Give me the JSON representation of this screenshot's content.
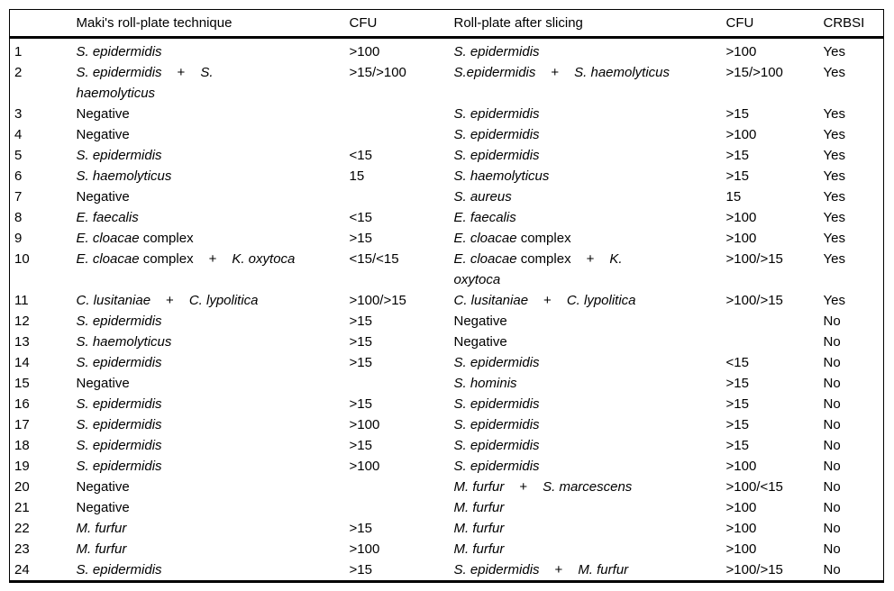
{
  "colors": {
    "text": "#000000",
    "background": "#ffffff",
    "rule": "#000000"
  },
  "table": {
    "headers": {
      "index": "",
      "maki": "Maki's roll-plate technique",
      "cfu1": "CFU",
      "slice": "Roll-plate after slicing",
      "cfu2": "CFU",
      "crbsi": "CRBSI"
    },
    "rows": [
      {
        "n": "1",
        "maki": [
          {
            "t": "S. epidermidis",
            "s": "i"
          }
        ],
        "cfu1": ">100",
        "slice": [
          {
            "t": "S. epidermidis",
            "s": "i"
          }
        ],
        "cfu2": ">100",
        "crbsi": "Yes"
      },
      {
        "n": "2",
        "maki": [
          {
            "t": "S. epidermidis",
            "s": "i"
          },
          {
            "t": "+",
            "s": "p"
          },
          {
            "t": "S.",
            "s": "i"
          },
          {
            "br": true
          },
          {
            "t": "haemolyticus",
            "s": "i"
          }
        ],
        "cfu1": ">15/>100",
        "slice": [
          {
            "t": "S.epidermidis",
            "s": "i"
          },
          {
            "t": "+",
            "s": "p"
          },
          {
            "t": "S. haemolyticus",
            "s": "i"
          }
        ],
        "cfu2": ">15/>100",
        "crbsi": "Yes"
      },
      {
        "n": "3",
        "maki": [
          {
            "t": "Negative",
            "s": "r"
          }
        ],
        "cfu1": "",
        "slice": [
          {
            "t": "S. epidermidis",
            "s": "i"
          }
        ],
        "cfu2": ">15",
        "crbsi": "Yes"
      },
      {
        "n": "4",
        "maki": [
          {
            "t": "Negative",
            "s": "r"
          }
        ],
        "cfu1": "",
        "slice": [
          {
            "t": "S. epidermidis",
            "s": "i"
          }
        ],
        "cfu2": ">100",
        "crbsi": "Yes"
      },
      {
        "n": "5",
        "maki": [
          {
            "t": "S. epidermidis",
            "s": "i"
          }
        ],
        "cfu1": "<15",
        "slice": [
          {
            "t": "S. epidermidis",
            "s": "i"
          }
        ],
        "cfu2": ">15",
        "crbsi": "Yes"
      },
      {
        "n": "6",
        "maki": [
          {
            "t": "S. haemolyticus",
            "s": "i"
          }
        ],
        "cfu1": "15",
        "slice": [
          {
            "t": "S. haemolyticus",
            "s": "i"
          }
        ],
        "cfu2": ">15",
        "crbsi": "Yes"
      },
      {
        "n": "7",
        "maki": [
          {
            "t": "Negative",
            "s": "r"
          }
        ],
        "cfu1": "",
        "slice": [
          {
            "t": "S. aureus",
            "s": "i"
          }
        ],
        "cfu2": "15",
        "crbsi": "Yes"
      },
      {
        "n": "8",
        "maki": [
          {
            "t": "E. faecalis",
            "s": "i"
          }
        ],
        "cfu1": "<15",
        "slice": [
          {
            "t": "E. faecalis",
            "s": "i"
          }
        ],
        "cfu2": ">100",
        "crbsi": "Yes"
      },
      {
        "n": "9",
        "maki": [
          {
            "t": "E. cloacae",
            "s": "i"
          },
          {
            "t": " complex",
            "s": "r"
          }
        ],
        "cfu1": ">15",
        "slice": [
          {
            "t": "E. cloacae",
            "s": "i"
          },
          {
            "t": " complex",
            "s": "r"
          }
        ],
        "cfu2": ">100",
        "crbsi": "Yes"
      },
      {
        "n": "10",
        "maki": [
          {
            "t": "E. cloacae",
            "s": "i"
          },
          {
            "t": " complex",
            "s": "r"
          },
          {
            "t": "+",
            "s": "p"
          },
          {
            "t": "K. oxytoca",
            "s": "i"
          }
        ],
        "cfu1": "<15/<15",
        "slice": [
          {
            "t": "E. cloacae",
            "s": "i"
          },
          {
            "t": " complex",
            "s": "r"
          },
          {
            "t": "+",
            "s": "p"
          },
          {
            "t": "K.",
            "s": "i"
          },
          {
            "br": true
          },
          {
            "t": "oxytoca",
            "s": "i"
          }
        ],
        "cfu2": ">100/>15",
        "crbsi": "Yes"
      },
      {
        "n": "11",
        "maki": [
          {
            "t": "C. lusitaniae",
            "s": "i"
          },
          {
            "t": "+",
            "s": "p"
          },
          {
            "t": "C. lypolitica",
            "s": "i"
          }
        ],
        "cfu1": ">100/>15",
        "slice": [
          {
            "t": "C. lusitaniae",
            "s": "i"
          },
          {
            "t": "+",
            "s": "p"
          },
          {
            "t": "C. lypolitica",
            "s": "i"
          }
        ],
        "cfu2": ">100/>15",
        "crbsi": "Yes"
      },
      {
        "n": "12",
        "maki": [
          {
            "t": "S. epidermidis",
            "s": "i"
          }
        ],
        "cfu1": ">15",
        "slice": [
          {
            "t": "Negative",
            "s": "r"
          }
        ],
        "cfu2": "",
        "crbsi": "No"
      },
      {
        "n": "13",
        "maki": [
          {
            "t": "S. haemolyticus",
            "s": "i"
          }
        ],
        "cfu1": ">15",
        "slice": [
          {
            "t": "Negative",
            "s": "r"
          }
        ],
        "cfu2": "",
        "crbsi": "No"
      },
      {
        "n": "14",
        "maki": [
          {
            "t": "S. epidermidis",
            "s": "i"
          }
        ],
        "cfu1": ">15",
        "slice": [
          {
            "t": "S. epidermidis",
            "s": "i"
          }
        ],
        "cfu2": "<15",
        "crbsi": "No"
      },
      {
        "n": "15",
        "maki": [
          {
            "t": "Negative",
            "s": "r"
          }
        ],
        "cfu1": "",
        "slice": [
          {
            "t": "S. hominis",
            "s": "i"
          }
        ],
        "cfu2": ">15",
        "crbsi": "No"
      },
      {
        "n": "16",
        "maki": [
          {
            "t": "S. epidermidis",
            "s": "i"
          }
        ],
        "cfu1": ">15",
        "slice": [
          {
            "t": "S. epidermidis",
            "s": "i"
          }
        ],
        "cfu2": ">15",
        "crbsi": "No"
      },
      {
        "n": "17",
        "maki": [
          {
            "t": "S. epidermidis",
            "s": "i"
          }
        ],
        "cfu1": ">100",
        "slice": [
          {
            "t": "S. epidermidis",
            "s": "i"
          }
        ],
        "cfu2": ">15",
        "crbsi": "No"
      },
      {
        "n": "18",
        "maki": [
          {
            "t": "S. epidermidis",
            "s": "i"
          }
        ],
        "cfu1": ">15",
        "slice": [
          {
            "t": "S. epidermidis",
            "s": "i"
          }
        ],
        "cfu2": ">15",
        "crbsi": "No"
      },
      {
        "n": "19",
        "maki": [
          {
            "t": "S. epidermidis",
            "s": "i"
          }
        ],
        "cfu1": ">100",
        "slice": [
          {
            "t": "S. epidermidis",
            "s": "i"
          }
        ],
        "cfu2": ">100",
        "crbsi": "No"
      },
      {
        "n": "20",
        "maki": [
          {
            "t": "Negative",
            "s": "r"
          }
        ],
        "cfu1": "",
        "slice": [
          {
            "t": "M. furfur",
            "s": "i"
          },
          {
            "t": "+",
            "s": "p"
          },
          {
            "t": "S. marcescens",
            "s": "i"
          }
        ],
        "cfu2": ">100/<15",
        "crbsi": "No"
      },
      {
        "n": "21",
        "maki": [
          {
            "t": "Negative",
            "s": "r"
          }
        ],
        "cfu1": "",
        "slice": [
          {
            "t": "M. furfur",
            "s": "i"
          }
        ],
        "cfu2": ">100",
        "crbsi": "No"
      },
      {
        "n": "22",
        "maki": [
          {
            "t": "M. furfur",
            "s": "i"
          }
        ],
        "cfu1": ">15",
        "slice": [
          {
            "t": "M. furfur",
            "s": "i"
          }
        ],
        "cfu2": ">100",
        "crbsi": "No"
      },
      {
        "n": "23",
        "maki": [
          {
            "t": "M. furfur",
            "s": "i"
          }
        ],
        "cfu1": ">100",
        "slice": [
          {
            "t": "M. furfur",
            "s": "i"
          }
        ],
        "cfu2": ">100",
        "crbsi": "No"
      },
      {
        "n": "24",
        "maki": [
          {
            "t": "S. epidermidis",
            "s": "i"
          }
        ],
        "cfu1": ">15",
        "slice": [
          {
            "t": "S. epidermidis",
            "s": "i"
          },
          {
            "t": "+",
            "s": "p"
          },
          {
            "t": "M. furfur",
            "s": "i"
          }
        ],
        "cfu2": ">100/>15",
        "crbsi": "No"
      }
    ]
  }
}
